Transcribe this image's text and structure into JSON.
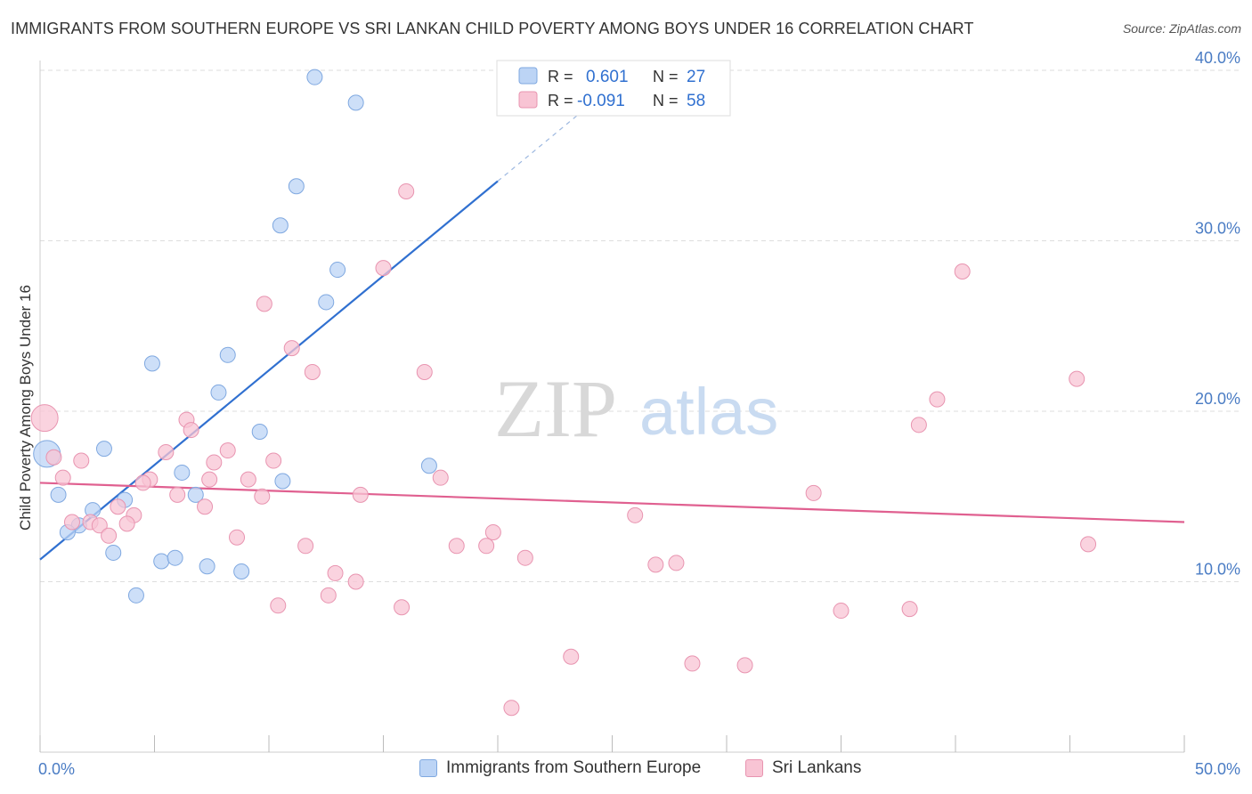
{
  "title": "IMMIGRANTS FROM SOUTHERN EUROPE VS SRI LANKAN CHILD POVERTY AMONG BOYS UNDER 16 CORRELATION CHART",
  "source": "Source: ZipAtlas.com",
  "watermark": {
    "zip": "ZIP",
    "atlas": "atlas"
  },
  "colors": {
    "blue": "#3070d0",
    "blue_fill": "#bcd4f5",
    "pink": "#e06090",
    "pink_fill": "#f8c4d4",
    "axis_text": "#4a7cc4",
    "grid": "#dddddd"
  },
  "stats": [
    {
      "r_label": "R =",
      "r": "0.601",
      "n_label": "N =",
      "n": "27"
    },
    {
      "r_label": "R =",
      "r": "-0.091",
      "n_label": "N =",
      "n": "58"
    }
  ],
  "bottom_legend": [
    "Immigrants from Southern Europe",
    "Sri Lankans"
  ],
  "chart_data": {
    "type": "scatter",
    "title": "IMMIGRANTS FROM SOUTHERN EUROPE VS SRI LANKAN CHILD POVERTY AMONG BOYS UNDER 16 CORRELATION CHART",
    "xlabel": "",
    "ylabel": "Child Poverty Among Boys Under 16",
    "xlim": [
      0,
      50
    ],
    "ylim": [
      0,
      40
    ],
    "x_tick_labels": [
      "0.0%",
      "50.0%"
    ],
    "y_ticks": [
      10,
      20,
      30,
      40
    ],
    "y_tick_labels": [
      "10.0%",
      "20.0%",
      "30.0%",
      "40.0%"
    ],
    "grid": true,
    "series": [
      {
        "name": "Immigrants from Southern Europe",
        "r": 0.601,
        "n": 27,
        "trend": {
          "x0": 0,
          "y0": 11.3,
          "x1": 20.0,
          "y1": 33.5,
          "dash_to_x": 24.5
        },
        "points": [
          {
            "x": 12.0,
            "y": 39.6
          },
          {
            "x": 13.8,
            "y": 38.1
          },
          {
            "x": 11.2,
            "y": 33.2
          },
          {
            "x": 10.5,
            "y": 30.9
          },
          {
            "x": 13.0,
            "y": 28.3
          },
          {
            "x": 12.5,
            "y": 26.4
          },
          {
            "x": 8.2,
            "y": 23.3
          },
          {
            "x": 4.9,
            "y": 22.8
          },
          {
            "x": 7.8,
            "y": 21.1
          },
          {
            "x": 9.6,
            "y": 18.8
          },
          {
            "x": 2.8,
            "y": 17.8
          },
          {
            "x": 0.3,
            "y": 17.5,
            "size": "large"
          },
          {
            "x": 6.2,
            "y": 16.4
          },
          {
            "x": 17.0,
            "y": 16.8
          },
          {
            "x": 10.6,
            "y": 15.9
          },
          {
            "x": 0.8,
            "y": 15.1
          },
          {
            "x": 6.8,
            "y": 15.1
          },
          {
            "x": 3.7,
            "y": 14.8
          },
          {
            "x": 2.3,
            "y": 14.2
          },
          {
            "x": 1.7,
            "y": 13.3
          },
          {
            "x": 1.2,
            "y": 12.9
          },
          {
            "x": 3.2,
            "y": 11.7
          },
          {
            "x": 5.3,
            "y": 11.2
          },
          {
            "x": 5.9,
            "y": 11.4
          },
          {
            "x": 7.3,
            "y": 10.9
          },
          {
            "x": 8.8,
            "y": 10.6
          },
          {
            "x": 4.2,
            "y": 9.2
          }
        ]
      },
      {
        "name": "Sri Lankans",
        "r": -0.091,
        "n": 58,
        "trend": {
          "x0": 0,
          "y0": 15.8,
          "x1": 50,
          "y1": 13.5
        },
        "points": [
          {
            "x": 16.0,
            "y": 32.9
          },
          {
            "x": 40.3,
            "y": 28.2
          },
          {
            "x": 15.0,
            "y": 28.4
          },
          {
            "x": 9.8,
            "y": 26.3
          },
          {
            "x": 11.0,
            "y": 23.7
          },
          {
            "x": 11.9,
            "y": 22.3
          },
          {
            "x": 16.8,
            "y": 22.3
          },
          {
            "x": 45.3,
            "y": 21.9
          },
          {
            "x": 39.2,
            "y": 20.7
          },
          {
            "x": 38.4,
            "y": 19.2
          },
          {
            "x": 0.2,
            "y": 19.6,
            "size": "large"
          },
          {
            "x": 6.4,
            "y": 19.5
          },
          {
            "x": 6.6,
            "y": 18.9
          },
          {
            "x": 5.5,
            "y": 17.6
          },
          {
            "x": 8.2,
            "y": 17.7
          },
          {
            "x": 0.6,
            "y": 17.3
          },
          {
            "x": 1.8,
            "y": 17.1
          },
          {
            "x": 10.2,
            "y": 17.1
          },
          {
            "x": 7.6,
            "y": 17.0
          },
          {
            "x": 1.0,
            "y": 16.1
          },
          {
            "x": 4.8,
            "y": 16.0
          },
          {
            "x": 4.5,
            "y": 15.8
          },
          {
            "x": 7.4,
            "y": 16.0
          },
          {
            "x": 9.1,
            "y": 16.0
          },
          {
            "x": 17.5,
            "y": 16.1
          },
          {
            "x": 6.0,
            "y": 15.1
          },
          {
            "x": 9.7,
            "y": 15.0
          },
          {
            "x": 14.0,
            "y": 15.1
          },
          {
            "x": 33.8,
            "y": 15.2
          },
          {
            "x": 3.4,
            "y": 14.4
          },
          {
            "x": 7.2,
            "y": 14.4
          },
          {
            "x": 4.1,
            "y": 13.9
          },
          {
            "x": 26.0,
            "y": 13.9
          },
          {
            "x": 2.2,
            "y": 13.5
          },
          {
            "x": 3.8,
            "y": 13.4
          },
          {
            "x": 1.4,
            "y": 13.5
          },
          {
            "x": 2.6,
            "y": 13.3
          },
          {
            "x": 3.0,
            "y": 12.7
          },
          {
            "x": 19.8,
            "y": 12.9
          },
          {
            "x": 8.6,
            "y": 12.6
          },
          {
            "x": 11.6,
            "y": 12.1
          },
          {
            "x": 18.2,
            "y": 12.1
          },
          {
            "x": 19.5,
            "y": 12.1
          },
          {
            "x": 45.8,
            "y": 12.2
          },
          {
            "x": 21.2,
            "y": 11.4
          },
          {
            "x": 26.9,
            "y": 11.0
          },
          {
            "x": 27.8,
            "y": 11.1
          },
          {
            "x": 12.9,
            "y": 10.5
          },
          {
            "x": 13.8,
            "y": 10.0
          },
          {
            "x": 12.6,
            "y": 9.2
          },
          {
            "x": 10.4,
            "y": 8.6
          },
          {
            "x": 15.8,
            "y": 8.5
          },
          {
            "x": 35.0,
            "y": 8.3
          },
          {
            "x": 38.0,
            "y": 8.4
          },
          {
            "x": 23.2,
            "y": 5.6
          },
          {
            "x": 28.5,
            "y": 5.2
          },
          {
            "x": 30.8,
            "y": 5.1
          },
          {
            "x": 20.6,
            "y": 2.6
          }
        ]
      }
    ]
  }
}
